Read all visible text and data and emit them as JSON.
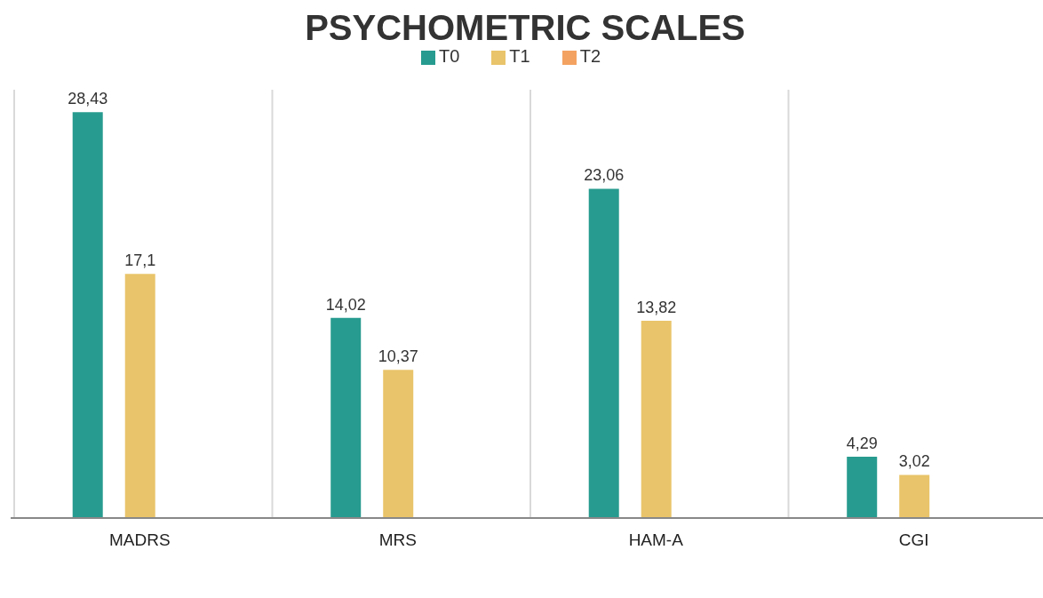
{
  "chart_data": {
    "type": "bar",
    "title": "PSYCHOMETRIC SCALES",
    "categories": [
      "MADRS",
      "MRS",
      "HAM-A",
      "CGI"
    ],
    "series": [
      {
        "name": "T0",
        "color": "#279b8f",
        "values": [
          28.43,
          14.02,
          23.06,
          4.29
        ],
        "value_labels": [
          "28,43",
          "14,02",
          "23,06",
          "4,29"
        ]
      },
      {
        "name": "T1",
        "color": "#e9c46a",
        "values": [
          17.1,
          10.37,
          13.82,
          3.02
        ],
        "value_labels": [
          "17,1",
          "10,37",
          "13,82",
          "3,02"
        ]
      },
      {
        "name": "T2",
        "color": "#f4a261",
        "values": [
          null,
          null,
          null,
          null
        ]
      }
    ],
    "grid": "x",
    "legend": "top"
  }
}
